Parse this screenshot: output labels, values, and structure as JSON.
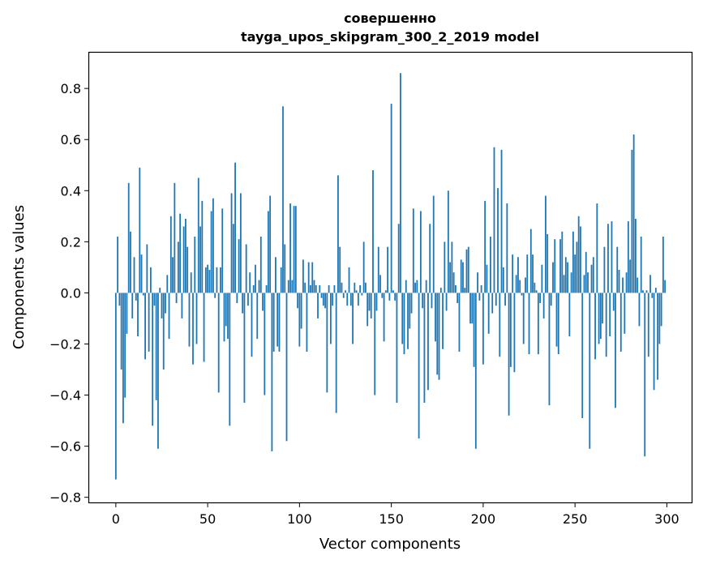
{
  "chart_data": {
    "type": "bar",
    "title_line1": "совершенно",
    "title_line2": "tayga_upos_skipgram_300_2_2019 model",
    "xlabel": "Vector components",
    "ylabel": "Components values",
    "xlim": [
      -14.5,
      313.5
    ],
    "ylim": [
      -0.82,
      0.94
    ],
    "x_ticks": [
      0,
      50,
      100,
      150,
      200,
      250,
      300
    ],
    "x_tick_labels": [
      "0",
      "50",
      "100",
      "150",
      "200",
      "250",
      "300"
    ],
    "y_ticks": [
      -0.8,
      -0.6,
      -0.4,
      -0.2,
      0.0,
      0.2,
      0.4,
      0.6,
      0.8
    ],
    "y_tick_labels": [
      "−0.8",
      "−0.6",
      "−0.4",
      "−0.2",
      "0.0",
      "0.2",
      "0.4",
      "0.6",
      "0.8"
    ],
    "bar_color": "#1f77b4",
    "x_start": 0,
    "values": [
      -0.73,
      0.22,
      -0.05,
      -0.3,
      -0.51,
      -0.41,
      -0.16,
      0.43,
      0.24,
      -0.1,
      0.14,
      -0.03,
      -0.17,
      0.49,
      0.15,
      -0.01,
      -0.26,
      0.19,
      -0.23,
      0.1,
      -0.52,
      -0.05,
      -0.42,
      -0.61,
      0.02,
      -0.1,
      -0.3,
      -0.08,
      0.07,
      -0.18,
      0.3,
      0.14,
      0.43,
      -0.04,
      0.2,
      0.31,
      -0.1,
      0.26,
      0.29,
      0.18,
      -0.21,
      0.08,
      -0.28,
      0.22,
      -0.2,
      0.45,
      0.26,
      0.36,
      -0.27,
      0.1,
      0.11,
      0.09,
      0.32,
      0.37,
      -0.02,
      0.1,
      -0.39,
      0.1,
      0.33,
      -0.19,
      -0.13,
      -0.18,
      -0.52,
      0.39,
      0.27,
      0.51,
      -0.04,
      0.21,
      0.39,
      -0.08,
      -0.43,
      0.19,
      -0.05,
      0.08,
      -0.25,
      0.03,
      0.11,
      -0.18,
      0.05,
      0.22,
      -0.07,
      -0.4,
      0.03,
      0.32,
      0.38,
      -0.62,
      -0.23,
      0.14,
      -0.21,
      -0.23,
      0.1,
      0.73,
      0.19,
      -0.58,
      0.05,
      0.35,
      0.05,
      0.34,
      0.34,
      -0.06,
      -0.21,
      -0.14,
      0.13,
      0.04,
      -0.23,
      0.12,
      0.03,
      0.12,
      0.05,
      0.03,
      -0.1,
      0.03,
      -0.02,
      -0.05,
      -0.06,
      -0.39,
      0.03,
      -0.2,
      -0.05,
      0.03,
      -0.47,
      0.46,
      0.18,
      0.04,
      -0.02,
      0.01,
      -0.05,
      0.1,
      -0.05,
      -0.2,
      0.04,
      0.01,
      -0.05,
      0.03,
      -0.01,
      0.2,
      0.04,
      -0.13,
      -0.07,
      -0.1,
      0.48,
      -0.4,
      -0.07,
      0.18,
      0.07,
      -0.02,
      -0.19,
      0.01,
      0.18,
      -0.03,
      0.74,
      0.01,
      -0.03,
      -0.43,
      0.27,
      0.86,
      -0.2,
      -0.24,
      0.05,
      -0.22,
      -0.14,
      -0.08,
      0.33,
      0.04,
      0.05,
      -0.57,
      0.32,
      -0.06,
      -0.43,
      0.05,
      -0.38,
      0.27,
      -0.06,
      0.38,
      -0.19,
      -0.32,
      -0.34,
      0.02,
      -0.22,
      0.2,
      -0.07,
      0.4,
      0.12,
      0.2,
      0.08,
      0.03,
      -0.04,
      -0.23,
      0.13,
      0.12,
      0.02,
      0.17,
      0.18,
      -0.12,
      -0.12,
      -0.29,
      -0.61,
      0.08,
      -0.03,
      0.03,
      -0.28,
      0.36,
      0.11,
      -0.16,
      0.22,
      -0.08,
      0.57,
      -0.05,
      0.41,
      -0.25,
      0.56,
      0.1,
      -0.05,
      0.35,
      -0.48,
      -0.29,
      0.15,
      -0.31,
      0.07,
      0.14,
      0.05,
      -0.01,
      -0.2,
      0.06,
      0.15,
      -0.24,
      0.25,
      0.15,
      0.04,
      0.01,
      -0.24,
      -0.04,
      0.11,
      -0.1,
      0.38,
      0.23,
      -0.44,
      -0.05,
      0.12,
      0.21,
      -0.21,
      -0.24,
      0.21,
      0.24,
      0.07,
      0.14,
      0.12,
      -0.17,
      0.08,
      0.24,
      0.15,
      0.2,
      0.3,
      0.26,
      -0.49,
      0.07,
      0.16,
      0.08,
      -0.61,
      0.11,
      0.14,
      -0.26,
      0.35,
      -0.2,
      -0.18,
      -0.12,
      0.18,
      -0.25,
      0.27,
      -0.17,
      0.28,
      -0.07,
      -0.45,
      0.18,
      0.09,
      -0.23,
      0.06,
      -0.16,
      0.08,
      0.28,
      0.13,
      0.56,
      0.62,
      0.29,
      0.06,
      -0.13,
      0.22,
      0.01,
      -0.64,
      0.01,
      -0.25,
      0.07,
      -0.02,
      -0.38,
      0.02,
      -0.34,
      -0.2,
      -0.13,
      0.22,
      0.05
    ]
  }
}
